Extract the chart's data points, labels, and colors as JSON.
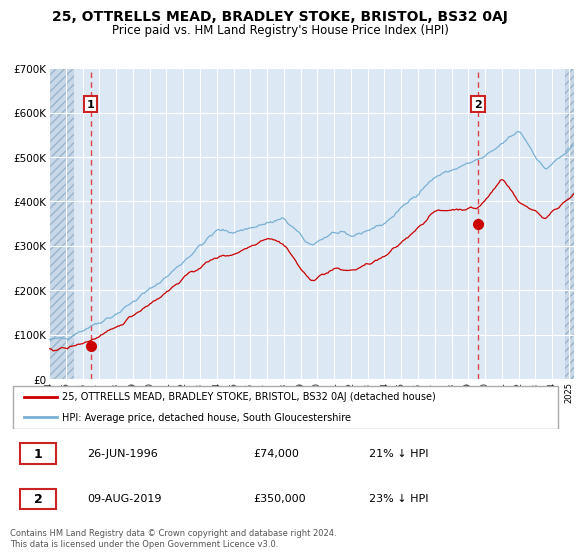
{
  "title": "25, OTTRELLS MEAD, BRADLEY STOKE, BRISTOL, BS32 0AJ",
  "subtitle": "Price paid vs. HM Land Registry's House Price Index (HPI)",
  "title_fontsize": 10,
  "subtitle_fontsize": 8.5,
  "plot_bg_color": "#dce9f5",
  "grid_color": "#ffffff",
  "red_line_color": "#cc0000",
  "blue_line_color": "#7ab0d4",
  "dashed_line_color": "#dd4444",
  "marker_color": "#cc0000",
  "annotation_box_color": "#cc2222",
  "ylim": [
    0,
    700000
  ],
  "yticks": [
    0,
    100000,
    200000,
    300000,
    400000,
    500000,
    600000,
    700000
  ],
  "ytick_labels": [
    "£0",
    "£100K",
    "£200K",
    "£300K",
    "£400K",
    "£500K",
    "£600K",
    "£700K"
  ],
  "xlim_start": 1994.0,
  "xlim_end": 2025.3,
  "hatch_left_end": 1995.5,
  "hatch_right_start": 2024.75,
  "xticks": [
    1994,
    1995,
    1996,
    1997,
    1998,
    1999,
    2000,
    2001,
    2002,
    2003,
    2004,
    2005,
    2006,
    2007,
    2008,
    2009,
    2010,
    2011,
    2012,
    2013,
    2014,
    2015,
    2016,
    2017,
    2018,
    2019,
    2020,
    2021,
    2022,
    2023,
    2024,
    2025
  ],
  "legend_entries": [
    "25, OTTRELLS MEAD, BRADLEY STOKE, BRISTOL, BS32 0AJ (detached house)",
    "HPI: Average price, detached house, South Gloucestershire"
  ],
  "annotation1": {
    "label": "1",
    "date": 1996.48,
    "price": 74000,
    "text_date": "26-JUN-1996",
    "text_price": "£74,000",
    "text_pct": "21% ↓ HPI"
  },
  "annotation2": {
    "label": "2",
    "date": 2019.58,
    "price": 350000,
    "text_date": "09-AUG-2019",
    "text_price": "£350,000",
    "text_pct": "23% ↓ HPI"
  },
  "footer": "Contains HM Land Registry data © Crown copyright and database right 2024.\nThis data is licensed under the Open Government Licence v3.0."
}
